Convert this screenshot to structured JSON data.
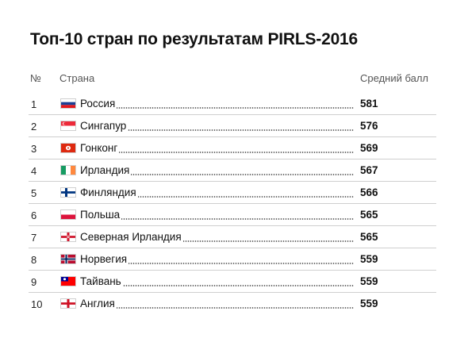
{
  "title": "Топ-10 стран по результатам PIRLS-2016",
  "columns": {
    "num": "№",
    "country": "Страна",
    "score": "Средний балл"
  },
  "rows": [
    {
      "num": "1",
      "country": "Россия",
      "score": "581",
      "flag": "russia-flag"
    },
    {
      "num": "2",
      "country": "Сингапур",
      "score": "576",
      "flag": "singapore-flag"
    },
    {
      "num": "3",
      "country": "Гонконг",
      "score": "569",
      "flag": "hong-kong-flag"
    },
    {
      "num": "4",
      "country": "Ирландия",
      "score": "567",
      "flag": "ireland-flag"
    },
    {
      "num": "5",
      "country": "Финляндия",
      "score": "566",
      "flag": "finland-flag"
    },
    {
      "num": "6",
      "country": "Польша",
      "score": "565",
      "flag": "poland-flag"
    },
    {
      "num": "7",
      "country": "Северная Ирландия",
      "score": "565",
      "flag": "northern-ireland-flag"
    },
    {
      "num": "8",
      "country": "Норвегия",
      "score": "559",
      "flag": "norway-flag"
    },
    {
      "num": "9",
      "country": "Тайвань",
      "score": "559",
      "flag": "taiwan-flag"
    },
    {
      "num": "10",
      "country": "Англия",
      "score": "559",
      "flag": "england-flag"
    }
  ]
}
